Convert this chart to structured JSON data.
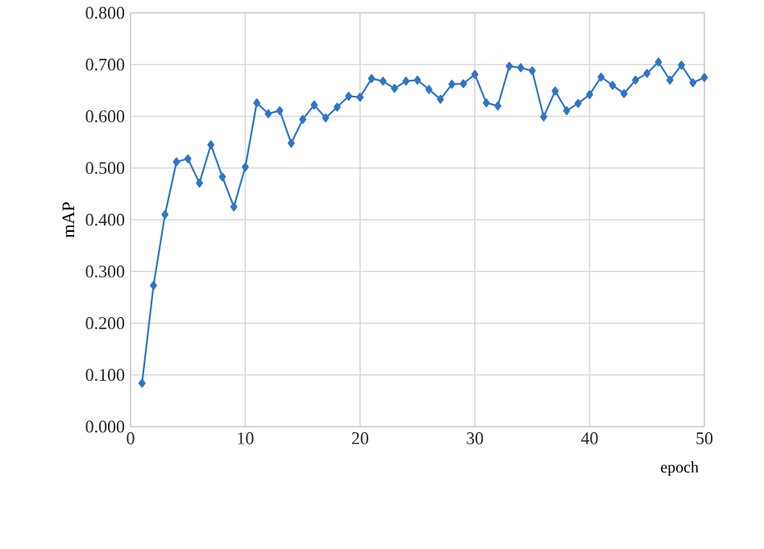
{
  "chart_data": {
    "type": "line",
    "xlabel": "epoch",
    "ylabel": "mAP",
    "x": [
      1,
      2,
      3,
      4,
      5,
      6,
      7,
      8,
      9,
      10,
      11,
      12,
      13,
      14,
      15,
      16,
      17,
      18,
      19,
      20,
      21,
      22,
      23,
      24,
      25,
      26,
      27,
      28,
      29,
      30,
      31,
      32,
      33,
      34,
      35,
      36,
      37,
      38,
      39,
      40,
      41,
      42,
      43,
      44,
      45,
      46,
      47,
      48,
      49,
      50
    ],
    "series": [
      {
        "color": "#2e75c8",
        "values": [
          0.084,
          0.273,
          0.41,
          0.512,
          0.518,
          0.471,
          0.545,
          0.483,
          0.425,
          0.502,
          0.626,
          0.605,
          0.611,
          0.548,
          0.594,
          0.622,
          0.597,
          0.618,
          0.639,
          0.637,
          0.673,
          0.668,
          0.654,
          0.668,
          0.67,
          0.652,
          0.633,
          0.662,
          0.663,
          0.681,
          0.626,
          0.62,
          0.697,
          0.694,
          0.688,
          0.599,
          0.649,
          0.611,
          0.625,
          0.642,
          0.676,
          0.66,
          0.644,
          0.67,
          0.683,
          0.705,
          0.67,
          0.699,
          0.665,
          0.675
        ]
      }
    ],
    "xlim": [
      0,
      50
    ],
    "xticks": [
      0,
      10,
      20,
      30,
      40,
      50
    ],
    "ylim": [
      0,
      0.8
    ],
    "yticks": [
      {
        "value": 0,
        "label": "0.000"
      },
      {
        "value": 0.1,
        "label": "0.100"
      },
      {
        "value": 0.2,
        "label": "0.200"
      },
      {
        "value": 0.3,
        "label": "0.300"
      },
      {
        "value": 0.4,
        "label": "0.400"
      },
      {
        "value": 0.5,
        "label": "0.500"
      },
      {
        "value": 0.6,
        "label": "0.600"
      },
      {
        "value": 0.7,
        "label": "0.700"
      },
      {
        "value": 0.8,
        "label": "0.800"
      }
    ],
    "grid": true,
    "marker": "diamond",
    "line_style": "solid"
  }
}
